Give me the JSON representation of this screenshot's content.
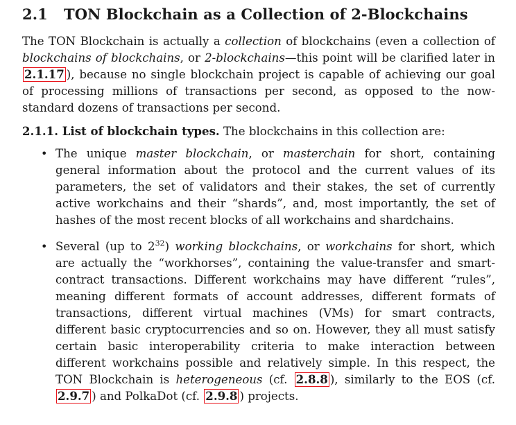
{
  "section": {
    "number": "2.1",
    "title": "TON Blockchain as a Collection of 2-Blockchains"
  },
  "intro": {
    "t1": "The TON Blockchain is actually a ",
    "em1": "collection",
    "t2": " of blockchains (even a collection of ",
    "em2": "blockchains of blockchains",
    "t3": ", or ",
    "em3": "2-blockchains",
    "t4": "—this point will be clarified later in ",
    "ref1": "2.1.17",
    "t5": "), because no single blockchain project is capable of achieving our goal of processing millions of transactions per second, as opposed to the now-standard dozens of transactions per second."
  },
  "subsection": {
    "heading": "2.1.1. List of blockchain types.",
    "text": " The blockchains in this collection are:"
  },
  "items": {
    "bullet": "•",
    "item1": {
      "t1": "The unique ",
      "em1": "master blockchain",
      "t2": ", or ",
      "em2": "masterchain",
      "t3": " for short, containing general information about the protocol and the current values of its parameters, the set of validators and their stakes, the set of currently active workchains and their “shards”, and, most importantly, the set of hashes of the most recent blocks of all workchains and shardchains."
    },
    "item2": {
      "t1": "Several (up to 2",
      "sup": "32",
      "t2": ") ",
      "em1": "working blockchains",
      "t3": ", or ",
      "em2": "workchains",
      "t4": " for short, which are actually the “workhorses”, containing the value-transfer and smart-contract transactions. Different workchains may have different “rules”, meaning different formats of account addresses, different formats of transactions, different virtual machines (VMs) for smart contracts, different basic cryptocurrencies and so on. However, they all must satisfy certain basic interoperability criteria to make interaction between different workchains possible and relatively simple. In this respect, the TON Blockchain is ",
      "em3": "heterogeneous",
      "t5": " (cf. ",
      "ref1": "2.8.8",
      "t6": "), similarly to the EOS (cf. ",
      "ref2": "2.9.7",
      "t7": ") and PolkaDot (cf. ",
      "ref3": "2.9.8",
      "t8": ") projects."
    }
  },
  "colors": {
    "ref_border": "#e8141b",
    "text": "#1a1a1a"
  }
}
